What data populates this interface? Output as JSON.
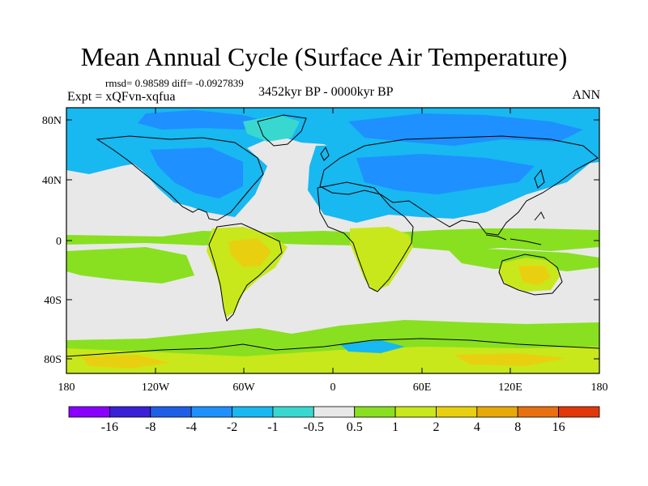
{
  "title": "Mean Annual Cycle (Surface Air Temperature)",
  "stats": "rmsd= 0.98589 diff= -0.0927839",
  "experiment": "Expt = xQFvn-xqfua",
  "period": "3452kyr BP - 0000kyr BP",
  "season": "ANN",
  "axes": {
    "lat_ticks": [
      "80N",
      "40N",
      "0",
      "40S",
      "80S"
    ],
    "lon_ticks": [
      "180",
      "120W",
      "60W",
      "0",
      "60E",
      "120E",
      "180"
    ]
  },
  "colorbar": {
    "colors": [
      "#8a00ff",
      "#3a1fd6",
      "#1f5fe6",
      "#1e90ff",
      "#18b8f0",
      "#38d8d0",
      "#e8e8e8",
      "#88e020",
      "#c8e81c",
      "#e8d010",
      "#e8a808",
      "#e87010",
      "#e03808"
    ],
    "labels": [
      "-16",
      "-8",
      "-4",
      "-2",
      "-1",
      "-0.5",
      "0.5",
      "1",
      "2",
      "4",
      "8",
      "16"
    ]
  },
  "map_colors": {
    "neutral": "#e8e8e8",
    "light_cyan": "#38d8d0",
    "cyan": "#18b8f0",
    "blue": "#1e90ff",
    "deep_blue": "#1f5fe6",
    "green": "#88e020",
    "yellow_green": "#c8e81c",
    "yellow": "#e8d010",
    "orange": "#e8a808"
  }
}
